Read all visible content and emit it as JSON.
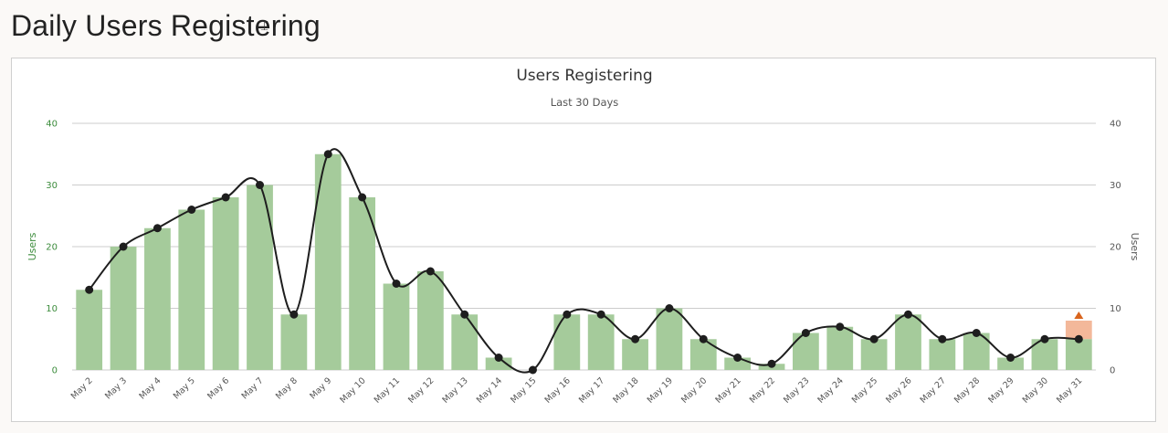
{
  "page": {
    "title": "Daily Users Registering"
  },
  "colors": {
    "bar": "#a5cb9b",
    "bar_highlight": "#f3b89a",
    "marker_highlight": "#d9651e",
    "line": "#1e1e1e",
    "grid": "#cccccc",
    "left_axis": "#3c8c3c",
    "right_axis": "#555555"
  },
  "chart_data": {
    "type": "bar",
    "title": "Users Registering",
    "subtitle": "Last 30 Days",
    "ylabel": "Users",
    "ylabel_right": "Users",
    "ylim": [
      0,
      40
    ],
    "yticks": [
      0,
      10,
      20,
      30,
      40
    ],
    "grid": true,
    "categories": [
      "May 2",
      "May 3",
      "May 4",
      "May 5",
      "May 6",
      "May 7",
      "May 8",
      "May 9",
      "May 10",
      "May 11",
      "May 12",
      "May 13",
      "May 14",
      "May 15",
      "May 16",
      "May 17",
      "May 18",
      "May 19",
      "May 20",
      "May 21",
      "May 22",
      "May 23",
      "May 24",
      "May 25",
      "May 26",
      "May 27",
      "May 28",
      "May 29",
      "May 30",
      "May 31"
    ],
    "series": [
      {
        "type": "bar",
        "values": [
          13,
          20,
          23,
          26,
          28,
          30,
          9,
          35,
          28,
          14,
          16,
          9,
          2,
          0,
          9,
          9,
          5,
          10,
          5,
          2,
          1,
          6,
          7,
          5,
          9,
          5,
          6,
          2,
          5,
          5
        ]
      },
      {
        "type": "spline",
        "values": [
          13,
          20,
          23,
          26,
          28,
          30,
          9,
          35,
          28,
          14,
          16,
          9,
          2,
          0,
          9,
          9,
          5,
          10,
          5,
          2,
          1,
          6,
          7,
          5,
          9,
          5,
          6,
          2,
          5,
          5
        ]
      }
    ],
    "last_bar_target": 8
  }
}
